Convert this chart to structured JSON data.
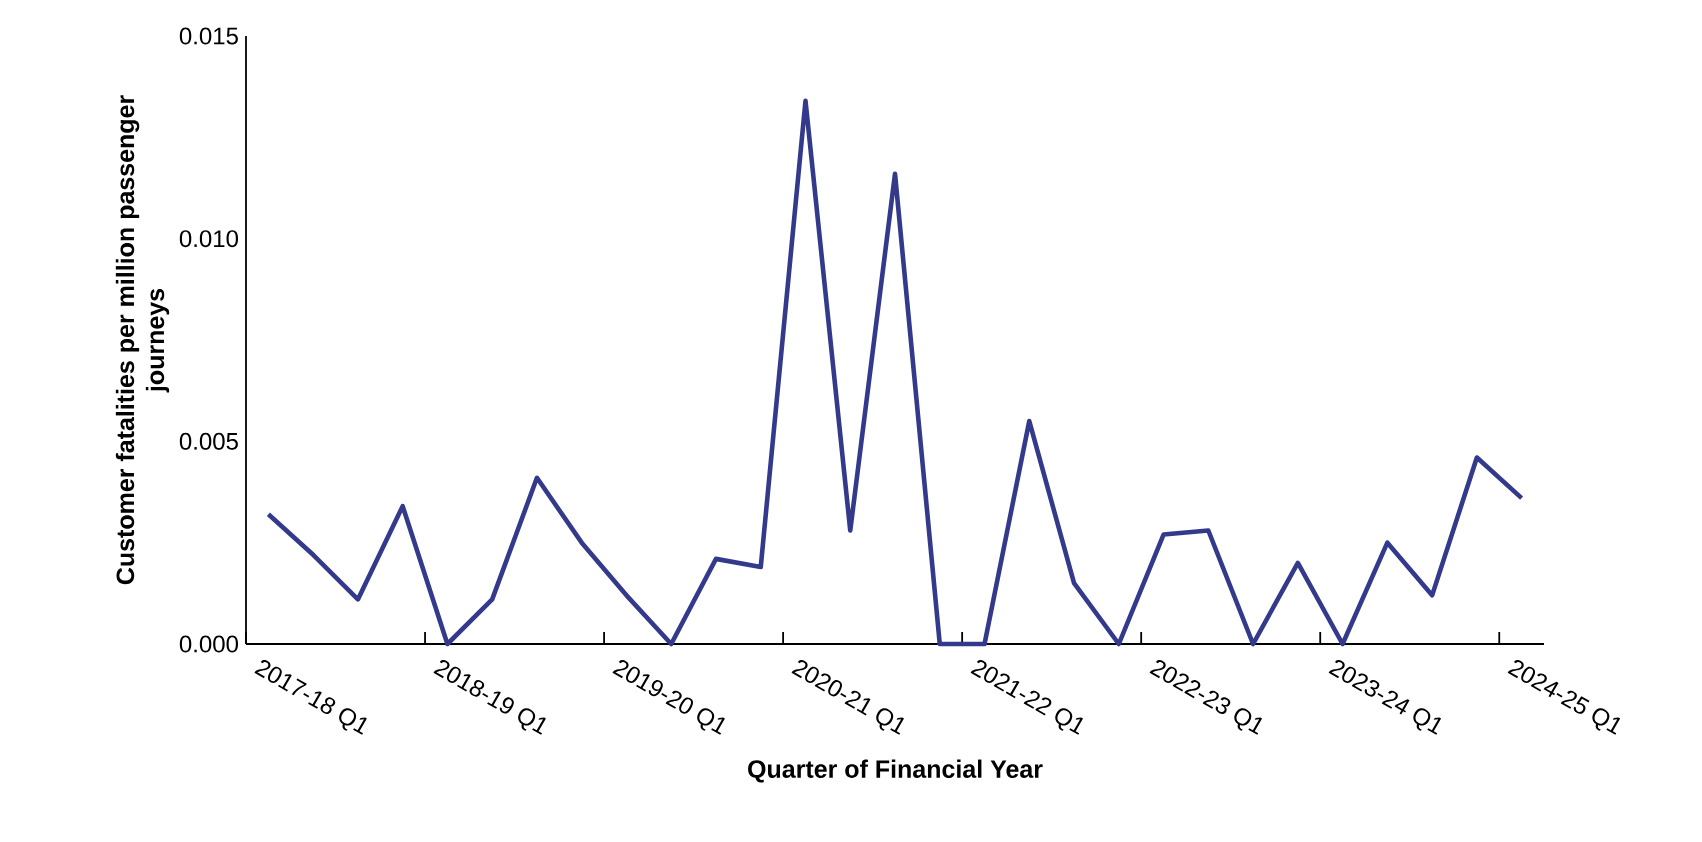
{
  "chart_data": {
    "type": "line",
    "xlabel": "Quarter of Financial Year",
    "ylabel": "Customer fatalities per million passenger journeys",
    "categories": [
      "2017-18 Q1",
      null,
      null,
      null,
      "2018-19 Q1",
      null,
      null,
      null,
      "2019-20 Q1",
      null,
      null,
      null,
      "2020-21 Q1",
      null,
      null,
      null,
      "2021-22 Q1",
      null,
      null,
      null,
      "2022-23 Q1",
      null,
      null,
      null,
      "2023-24 Q1",
      null,
      null,
      null,
      "2024-25 Q1"
    ],
    "series": [
      {
        "color": "#333a8c",
        "values": [
          0.0032,
          0.0022,
          0.0011,
          0.0034,
          0.0,
          0.0011,
          0.0041,
          0.0025,
          0.0012,
          0.0,
          0.0021,
          0.0019,
          0.0134,
          0.0028,
          0.0116,
          0.0,
          0.0,
          0.0055,
          0.0015,
          0.0,
          0.0027,
          0.0028,
          0.0,
          0.002,
          0.0,
          0.0025,
          0.0012,
          0.0046,
          0.0036
        ]
      }
    ],
    "ylim": [
      0,
      0.015
    ],
    "yticks": [
      {
        "value": 0,
        "label": "0.000"
      },
      {
        "value": 0.005,
        "label": "0.005"
      },
      {
        "value": 0.01,
        "label": "0.010"
      },
      {
        "value": 0.015,
        "label": "0.015"
      }
    ],
    "grid": false,
    "marker": "none",
    "line_style": "solid"
  }
}
